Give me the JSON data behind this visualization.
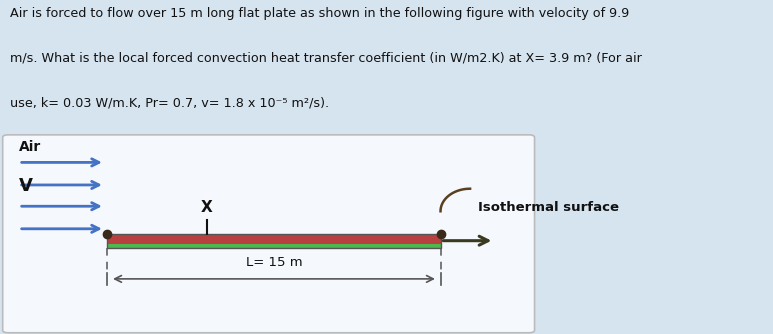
{
  "background_color": "#d6e4f0",
  "text_lines": [
    "Air is forced to flow over 15 m long flat plate as shown in the following figure with velocity of 9.9",
    "m/s. What is the local forced convection heat transfer coefficient (in W/m2.K) at X= 3.9 m? (For air",
    "use, k= 0.03 W/m.K, Pr= 0.7, v= 1.8 x 10⁻⁵ m²/s)."
  ],
  "plate_color_red": "#b94040",
  "plate_color_green": "#4db84d",
  "plate_outline_color": "#555555",
  "arrow_blue": "#4472C4",
  "arrow_dark": "#2a2a2a",
  "dim_color": "#555555",
  "dot_color": "#3a2a1a",
  "curve_color": "#5a4020",
  "label_air": "Air",
  "label_v": "V",
  "label_x": "X",
  "label_L": "L= 15 m",
  "label_isothermal": "Isothermal surface",
  "box_bg": "#f5f8fc",
  "box_edge": "#bbbbbb"
}
